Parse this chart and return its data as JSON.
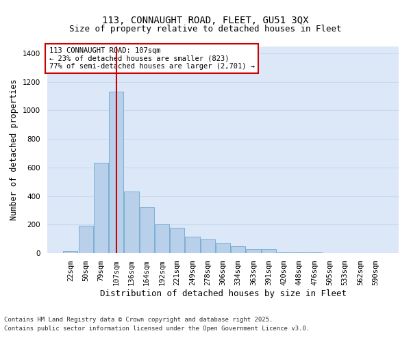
{
  "title_line1": "113, CONNAUGHT ROAD, FLEET, GU51 3QX",
  "title_line2": "Size of property relative to detached houses in Fleet",
  "xlabel": "Distribution of detached houses by size in Fleet",
  "ylabel": "Number of detached properties",
  "categories": [
    "22sqm",
    "50sqm",
    "79sqm",
    "107sqm",
    "136sqm",
    "164sqm",
    "192sqm",
    "221sqm",
    "249sqm",
    "278sqm",
    "306sqm",
    "334sqm",
    "363sqm",
    "391sqm",
    "420sqm",
    "448sqm",
    "476sqm",
    "505sqm",
    "533sqm",
    "562sqm",
    "590sqm"
  ],
  "values": [
    15,
    190,
    635,
    1130,
    430,
    320,
    200,
    175,
    115,
    95,
    70,
    50,
    30,
    30,
    5,
    5,
    5,
    0,
    0,
    0,
    0
  ],
  "bar_color": "#b8d0ea",
  "bar_edge_color": "#7aafd4",
  "highlight_index": 3,
  "highlight_color": "#cc0000",
  "annotation_text": "113 CONNAUGHT ROAD: 107sqm\n← 23% of detached houses are smaller (823)\n77% of semi-detached houses are larger (2,701) →",
  "annotation_box_color": "#ffffff",
  "annotation_box_edge_color": "#cc0000",
  "ylim": [
    0,
    1450
  ],
  "yticks": [
    0,
    200,
    400,
    600,
    800,
    1000,
    1200,
    1400
  ],
  "grid_color": "#c8d8ee",
  "bg_color": "#dce8f8",
  "footer_line1": "Contains HM Land Registry data © Crown copyright and database right 2025.",
  "footer_line2": "Contains public sector information licensed under the Open Government Licence v3.0.",
  "title_fontsize": 10,
  "subtitle_fontsize": 9,
  "axis_label_fontsize": 8.5,
  "tick_fontsize": 7.5,
  "annotation_fontsize": 7.5,
  "footer_fontsize": 6.5
}
